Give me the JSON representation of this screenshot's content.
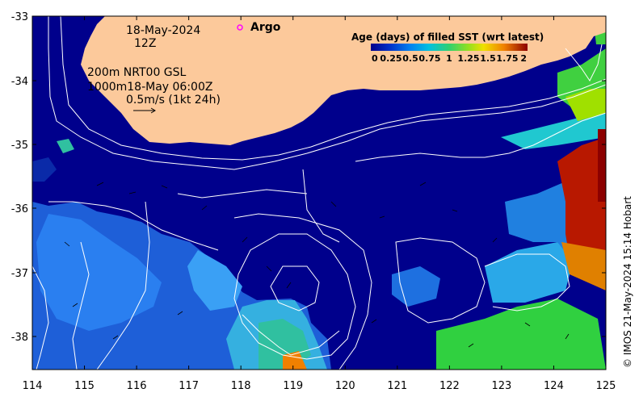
{
  "map": {
    "date_line1": "18-May-2024",
    "date_line2": "12Z",
    "contour_line1": "200m  NRT00 GSL",
    "contour_line2": "1000m18-May 06:00Z",
    "velocity_scale": "0.5m/s (1kt 24h)",
    "argo_label": "Argo",
    "credit": "© IMOS 21-May-2024 15:14 Hobart",
    "lon_ticks": [
      "114",
      "115",
      "116",
      "117",
      "118",
      "119",
      "120",
      "121",
      "122",
      "123",
      "124",
      "125"
    ],
    "lat_ticks": [
      "-33",
      "-34",
      "-35",
      "-36",
      "-37",
      "-38"
    ],
    "extent": {
      "lon": [
        114,
        125
      ],
      "lat": [
        -38.5,
        -33
      ]
    },
    "colors": {
      "ocean": "#00008c",
      "land": "#fcc99b",
      "contour": "#ffffff",
      "argo": "#ff00ff"
    }
  },
  "legend": {
    "title": "Age (days) of filled SST (wrt latest)",
    "ticks": [
      "0",
      "0.25",
      "0.5",
      "0.75",
      "1",
      "1.25",
      "1.5",
      "1.75",
      "2"
    ],
    "colors": [
      "#00008c",
      "#0050dc",
      "#00a0f0",
      "#20d0b0",
      "#40d040",
      "#a0e000",
      "#f0e000",
      "#f08000",
      "#d02000",
      "#8c0000"
    ]
  }
}
